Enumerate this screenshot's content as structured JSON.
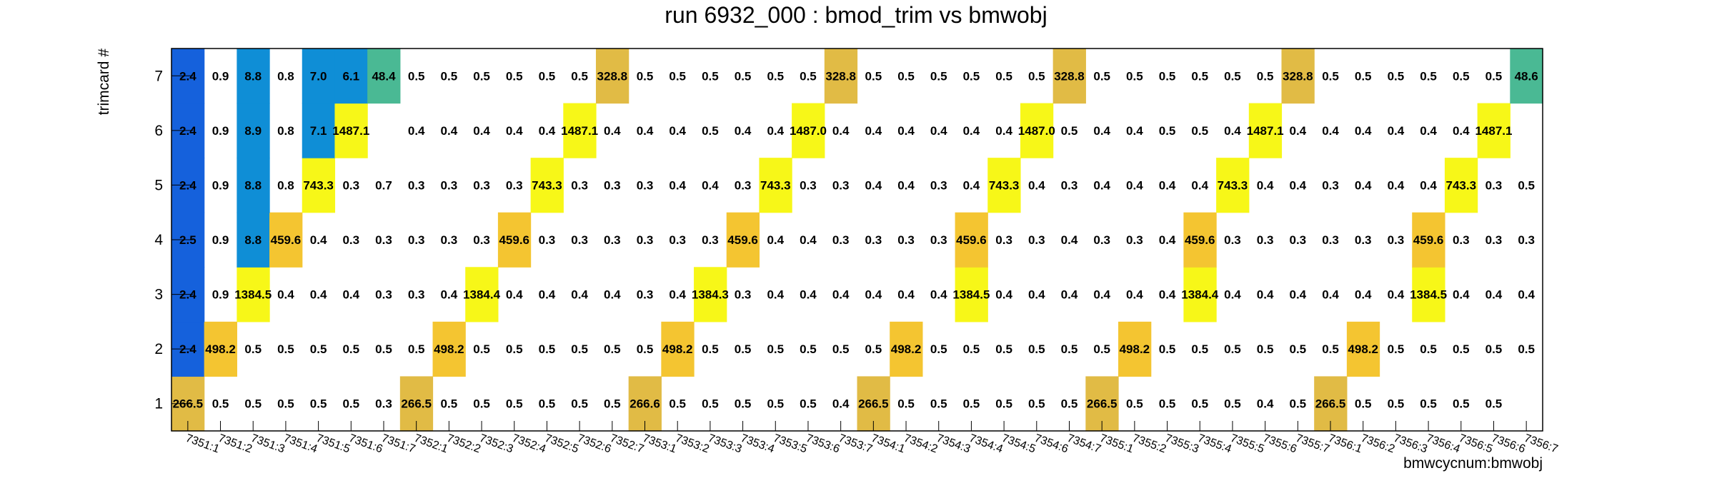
{
  "chart_data": {
    "type": "heatmap",
    "title": "run 6932_000 : bmod_trim vs bmwobj",
    "xlabel": "bmwcycnum:bmwobj",
    "ylabel": "trimcard #",
    "x_categories": [
      "7351:1",
      "7351:2",
      "7351:3",
      "7351:4",
      "7351:5",
      "7351:6",
      "7351:7",
      "7352:1",
      "7352:2",
      "7352:3",
      "7352:4",
      "7352:5",
      "7352:6",
      "7352:7",
      "7353:1",
      "7353:2",
      "7353:3",
      "7353:4",
      "7353:5",
      "7353:6",
      "7353:7",
      "7354:1",
      "7354:2",
      "7354:3",
      "7354:4",
      "7354:5",
      "7354:6",
      "7354:7",
      "7355:1",
      "7355:2",
      "7355:3",
      "7355:4",
      "7355:5",
      "7355:6",
      "7355:7",
      "7356:1",
      "7356:2",
      "7356:3",
      "7356:4",
      "7356:5",
      "7356:6",
      "7356:7"
    ],
    "y_categories": [
      "1",
      "2",
      "3",
      "4",
      "5",
      "6",
      "7"
    ],
    "grid": false,
    "legend": "none",
    "color_scale": [
      {
        "max": 1,
        "color": "#ffffff"
      },
      {
        "max": 3,
        "color": "#1561dc"
      },
      {
        "max": 30,
        "color": "#0f8ed6"
      },
      {
        "max": 60,
        "color": "#4ab994"
      },
      {
        "max": 400,
        "color": "#e1bb45"
      },
      {
        "max": 600,
        "color": "#f4c531"
      },
      {
        "max": 1000000,
        "color": "#f7f718"
      }
    ],
    "rows": {
      "7": [
        2.4,
        0.9,
        8.8,
        0.8,
        7.0,
        6.1,
        48.4,
        0.5,
        0.5,
        0.5,
        0.5,
        0.5,
        0.5,
        328.8,
        0.5,
        0.5,
        0.5,
        0.5,
        0.5,
        0.5,
        328.8,
        0.5,
        0.5,
        0.5,
        0.5,
        0.5,
        0.5,
        328.8,
        0.5,
        0.5,
        0.5,
        0.5,
        0.5,
        0.5,
        328.8,
        0.5,
        0.5,
        0.5,
        0.5,
        0.5,
        0.5,
        48.6
      ],
      "6": [
        2.4,
        0.9,
        8.9,
        0.8,
        7.1,
        1487.1,
        null,
        0.4,
        0.4,
        0.4,
        0.4,
        0.4,
        1487.1,
        0.4,
        0.4,
        0.4,
        0.5,
        0.4,
        0.4,
        1487.0,
        0.4,
        0.4,
        0.4,
        0.4,
        0.4,
        0.4,
        1487.0,
        0.5,
        0.4,
        0.4,
        0.5,
        0.5,
        0.4,
        1487.1,
        0.4,
        0.4,
        0.4,
        0.4,
        0.4,
        0.4,
        1487.1,
        null
      ],
      "5": [
        2.4,
        0.9,
        8.8,
        0.8,
        743.3,
        0.3,
        0.7,
        0.3,
        0.3,
        0.3,
        0.3,
        743.3,
        0.3,
        0.3,
        0.3,
        0.4,
        0.4,
        0.3,
        743.3,
        0.3,
        0.3,
        0.4,
        0.4,
        0.3,
        0.4,
        743.3,
        0.4,
        0.3,
        0.4,
        0.4,
        0.4,
        0.4,
        743.3,
        0.4,
        0.4,
        0.3,
        0.4,
        0.4,
        0.4,
        743.3,
        0.3,
        0.5
      ],
      "4": [
        2.5,
        0.9,
        8.8,
        459.6,
        0.4,
        0.3,
        0.3,
        0.3,
        0.3,
        0.3,
        459.6,
        0.3,
        0.3,
        0.3,
        0.3,
        0.3,
        0.3,
        459.6,
        0.4,
        0.4,
        0.3,
        0.3,
        0.3,
        0.3,
        459.6,
        0.3,
        0.3,
        0.4,
        0.3,
        0.3,
        0.4,
        459.6,
        0.3,
        0.3,
        0.3,
        0.3,
        0.3,
        0.3,
        459.6,
        0.3,
        0.3,
        0.3
      ],
      "3": [
        2.4,
        0.9,
        1384.5,
        0.4,
        0.4,
        0.4,
        0.3,
        0.3,
        0.4,
        1384.4,
        0.4,
        0.4,
        0.4,
        0.4,
        0.3,
        0.4,
        1384.3,
        0.3,
        0.4,
        0.4,
        0.4,
        0.4,
        0.4,
        0.4,
        1384.5,
        0.4,
        0.4,
        0.4,
        0.4,
        0.4,
        0.4,
        1384.4,
        0.4,
        0.4,
        0.4,
        0.4,
        0.4,
        0.4,
        1384.5,
        0.4,
        0.4,
        0.4
      ],
      "2": [
        2.4,
        498.2,
        0.5,
        0.5,
        0.5,
        0.5,
        0.5,
        0.5,
        498.2,
        0.5,
        0.5,
        0.5,
        0.5,
        0.5,
        0.5,
        498.2,
        0.5,
        0.5,
        0.5,
        0.5,
        0.5,
        0.5,
        498.2,
        0.5,
        0.5,
        0.5,
        0.5,
        0.5,
        0.5,
        498.2,
        0.5,
        0.5,
        0.5,
        0.5,
        0.5,
        0.5,
        498.2,
        0.5,
        0.5,
        0.5,
        0.5,
        0.5
      ],
      "1": [
        266.5,
        0.5,
        0.5,
        0.5,
        0.5,
        0.5,
        0.3,
        266.5,
        0.5,
        0.5,
        0.5,
        0.5,
        0.5,
        0.5,
        266.6,
        0.5,
        0.5,
        0.5,
        0.5,
        0.5,
        0.4,
        266.5,
        0.5,
        0.5,
        0.5,
        0.5,
        0.5,
        0.5,
        266.5,
        0.5,
        0.5,
        0.5,
        0.5,
        0.4,
        0.5,
        266.5,
        0.5,
        0.5,
        0.5,
        0.5,
        0.5,
        null
      ]
    }
  }
}
